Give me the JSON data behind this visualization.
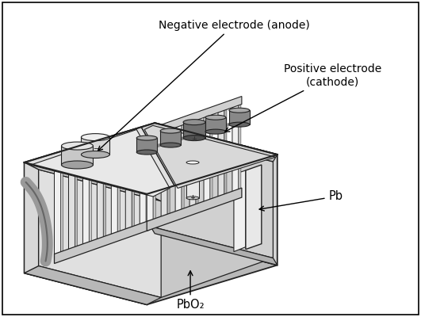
{
  "background_color": "#ffffff",
  "border_color": "#000000",
  "labels": {
    "neg_electrode": "Negative electrode (anode)",
    "pos_electrode": "Positive electrode\n(cathode)",
    "pb": "Pb",
    "pbo2": "PbO₂"
  },
  "colors": {
    "lc": "#222222",
    "outer_gray": "#b0b0b0",
    "light_gray": "#d8d8d8",
    "mid_gray": "#c0c0c0",
    "dark_gray": "#888888",
    "very_light": "#ececec",
    "white_plate": "#f5f5f5",
    "terminal_light": "#d0d0d0",
    "terminal_dark": "#909090",
    "terminal_darkest": "#606060",
    "text_color": "#000000"
  },
  "figsize": [
    5.31,
    4.0
  ],
  "dpi": 100
}
